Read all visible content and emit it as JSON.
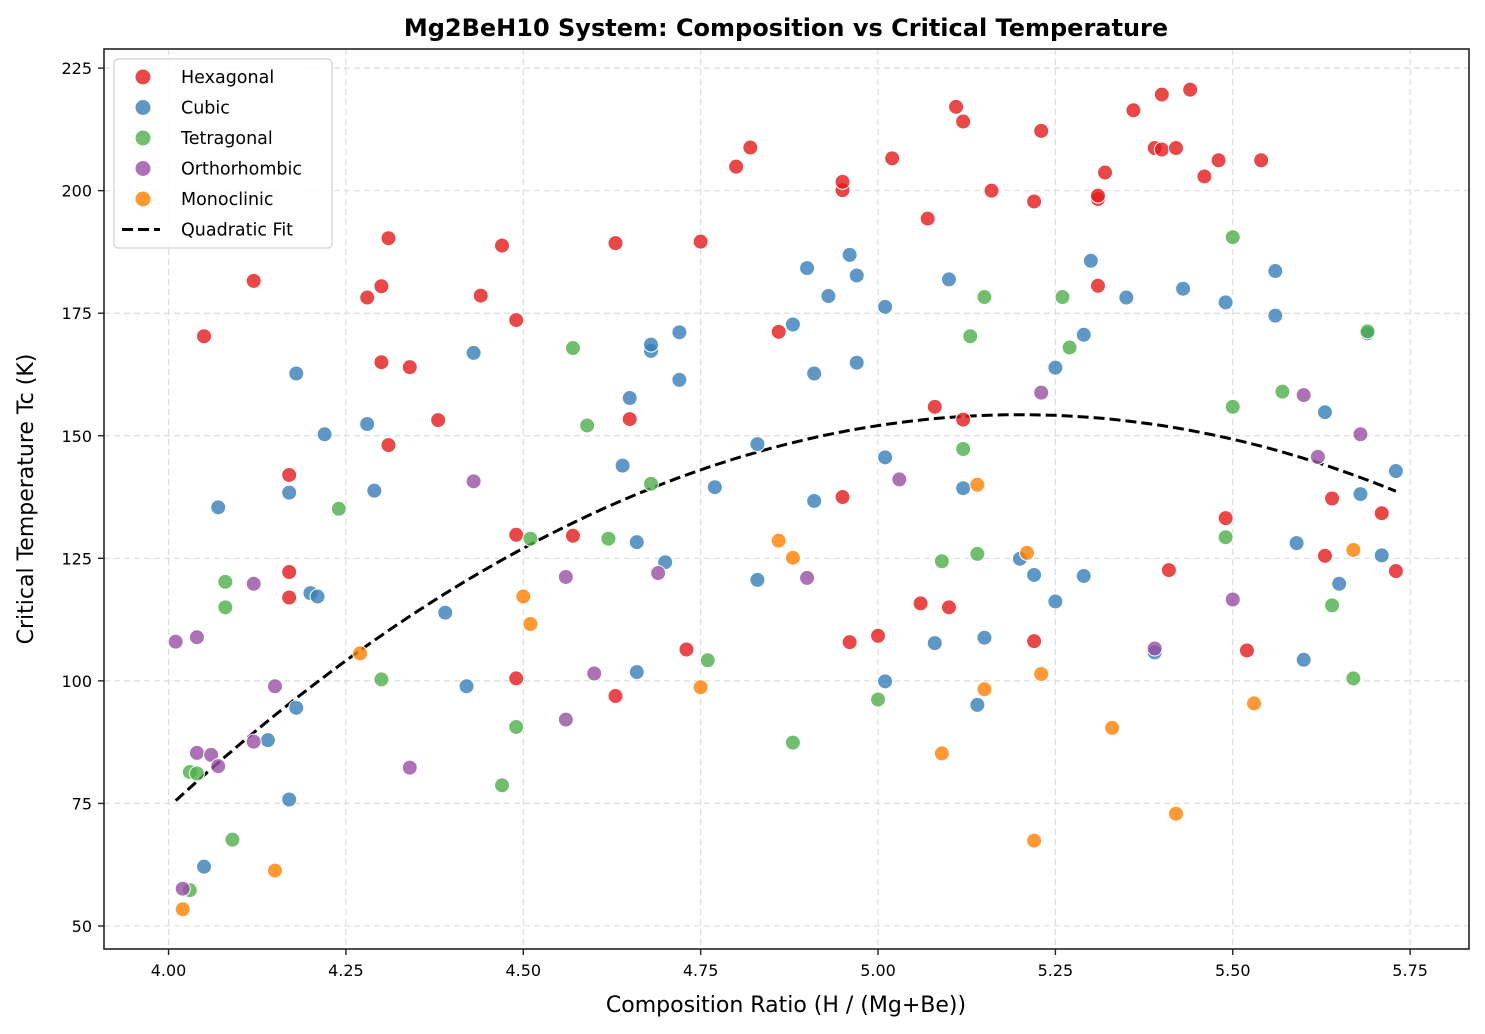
{
  "chart_data": {
    "type": "scatter",
    "title": "Mg2BeH10 System: Composition vs Critical Temperature",
    "xlabel": "Composition Ratio (H / (Mg+Be))",
    "ylabel": "Critical Temperature Tc (K)",
    "xlim": [
      3.909,
      5.833
    ],
    "ylim": [
      45.3,
      228.9
    ],
    "xticks": [
      4.0,
      4.25,
      4.5,
      4.75,
      5.0,
      5.25,
      5.5,
      5.75
    ],
    "xtick_labels": [
      "4.00",
      "4.25",
      "4.50",
      "4.75",
      "5.00",
      "5.25",
      "5.50",
      "5.75"
    ],
    "yticks": [
      50,
      75,
      100,
      125,
      150,
      175,
      200,
      225
    ],
    "ytick_labels": [
      "50",
      "75",
      "100",
      "125",
      "150",
      "175",
      "200",
      "225"
    ],
    "grid": true,
    "legend_position": "top-left",
    "series": [
      {
        "name": "Hexagonal",
        "color": "#e41a1c",
        "points": [
          [
            4.05,
            170.3
          ],
          [
            4.12,
            181.6
          ],
          [
            4.17,
            142
          ],
          [
            4.17,
            122.2
          ],
          [
            4.17,
            117
          ],
          [
            4.28,
            178.2
          ],
          [
            4.3,
            180.5
          ],
          [
            4.3,
            165
          ],
          [
            4.31,
            190.3
          ],
          [
            4.31,
            148.1
          ],
          [
            4.34,
            164
          ],
          [
            4.38,
            153.2
          ],
          [
            4.44,
            178.6
          ],
          [
            4.47,
            188.8
          ],
          [
            4.49,
            173.6
          ],
          [
            4.49,
            129.8
          ],
          [
            4.49,
            100.5
          ],
          [
            4.57,
            129.6
          ],
          [
            4.63,
            189.3
          ],
          [
            4.63,
            96.9
          ],
          [
            4.65,
            153.4
          ],
          [
            4.73,
            106.4
          ],
          [
            4.75,
            189.6
          ],
          [
            4.8,
            204.9
          ],
          [
            4.82,
            208.8
          ],
          [
            4.86,
            171.2
          ],
          [
            4.95,
            200.1
          ],
          [
            4.95,
            201.8
          ],
          [
            4.95,
            137.5
          ],
          [
            4.96,
            107.9
          ],
          [
            5.0,
            109.2
          ],
          [
            5.02,
            206.6
          ],
          [
            5.06,
            115.8
          ],
          [
            5.07,
            194.3
          ],
          [
            5.08,
            155.9
          ],
          [
            5.1,
            115
          ],
          [
            5.11,
            217.1
          ],
          [
            5.12,
            214.1
          ],
          [
            5.12,
            153.3
          ],
          [
            5.16,
            200
          ],
          [
            5.22,
            197.8
          ],
          [
            5.22,
            108.1
          ],
          [
            5.23,
            212.2
          ],
          [
            5.31,
            180.6
          ],
          [
            5.31,
            198.3
          ],
          [
            5.31,
            199
          ],
          [
            5.32,
            203.7
          ],
          [
            5.36,
            216.4
          ],
          [
            5.39,
            208.7
          ],
          [
            5.4,
            219.6
          ],
          [
            5.4,
            208.4
          ],
          [
            5.42,
            208.7
          ],
          [
            5.41,
            122.6
          ],
          [
            5.44,
            220.6
          ],
          [
            5.46,
            202.9
          ],
          [
            5.48,
            206.2
          ],
          [
            5.49,
            133.2
          ],
          [
            5.52,
            106.2
          ],
          [
            5.54,
            206.2
          ],
          [
            5.63,
            125.5
          ],
          [
            5.64,
            137.2
          ],
          [
            5.71,
            134.2
          ],
          [
            5.73,
            122.4
          ]
        ]
      },
      {
        "name": "Cubic",
        "color": "#377eb8",
        "points": [
          [
            4.05,
            62.1
          ],
          [
            4.07,
            135.4
          ],
          [
            4.14,
            87.9
          ],
          [
            4.17,
            138.4
          ],
          [
            4.17,
            75.8
          ],
          [
            4.18,
            162.7
          ],
          [
            4.18,
            94.5
          ],
          [
            4.2,
            117.9
          ],
          [
            4.21,
            117.2
          ],
          [
            4.22,
            150.3
          ],
          [
            4.28,
            152.4
          ],
          [
            4.29,
            138.8
          ],
          [
            4.39,
            113.9
          ],
          [
            4.42,
            98.9
          ],
          [
            4.43,
            166.9
          ],
          [
            4.64,
            143.9
          ],
          [
            4.65,
            157.7
          ],
          [
            4.66,
            128.3
          ],
          [
            4.66,
            101.8
          ],
          [
            4.68,
            167.3
          ],
          [
            4.68,
            168.6
          ],
          [
            4.7,
            124.2
          ],
          [
            4.72,
            171.1
          ],
          [
            4.72,
            161.4
          ],
          [
            4.77,
            139.5
          ],
          [
            4.83,
            148.3
          ],
          [
            4.83,
            120.6
          ],
          [
            4.88,
            172.7
          ],
          [
            4.9,
            184.2
          ],
          [
            4.91,
            136.7
          ],
          [
            4.91,
            162.7
          ],
          [
            4.93,
            178.5
          ],
          [
            4.96,
            186.9
          ],
          [
            4.97,
            182.7
          ],
          [
            4.97,
            164.9
          ],
          [
            5.01,
            176.3
          ],
          [
            5.01,
            145.6
          ],
          [
            5.01,
            99.9
          ],
          [
            5.08,
            107.7
          ],
          [
            5.1,
            181.9
          ],
          [
            5.12,
            139.3
          ],
          [
            5.14,
            95.1
          ],
          [
            5.15,
            108.8
          ],
          [
            5.2,
            124.9
          ],
          [
            5.22,
            121.6
          ],
          [
            5.25,
            116.2
          ],
          [
            5.25,
            163.9
          ],
          [
            5.29,
            170.6
          ],
          [
            5.29,
            121.4
          ],
          [
            5.3,
            185.7
          ],
          [
            5.35,
            178.2
          ],
          [
            5.39,
            105.8
          ],
          [
            5.43,
            180
          ],
          [
            5.49,
            177.2
          ],
          [
            5.56,
            183.6
          ],
          [
            5.56,
            174.5
          ],
          [
            5.59,
            128.1
          ],
          [
            5.6,
            104.3
          ],
          [
            5.63,
            154.8
          ],
          [
            5.65,
            119.8
          ],
          [
            5.68,
            138.1
          ],
          [
            5.69,
            170.9
          ],
          [
            5.71,
            125.6
          ],
          [
            5.73,
            142.8
          ]
        ]
      },
      {
        "name": "Tetragonal",
        "color": "#4daf4a",
        "points": [
          [
            4.03,
            81.4
          ],
          [
            4.03,
            57.3
          ],
          [
            4.04,
            81.1
          ],
          [
            4.08,
            120.2
          ],
          [
            4.08,
            115
          ],
          [
            4.09,
            67.6
          ],
          [
            4.24,
            135.1
          ],
          [
            4.3,
            100.3
          ],
          [
            4.47,
            78.7
          ],
          [
            4.49,
            90.6
          ],
          [
            4.51,
            129
          ],
          [
            4.57,
            167.9
          ],
          [
            4.59,
            152.1
          ],
          [
            4.62,
            129
          ],
          [
            4.68,
            140.2
          ],
          [
            4.76,
            104.2
          ],
          [
            4.88,
            87.4
          ],
          [
            5.0,
            96.2
          ],
          [
            5.09,
            124.4
          ],
          [
            5.12,
            147.3
          ],
          [
            5.13,
            170.3
          ],
          [
            5.14,
            125.9
          ],
          [
            5.15,
            178.3
          ],
          [
            5.26,
            178.3
          ],
          [
            5.27,
            168
          ],
          [
            5.49,
            129.3
          ],
          [
            5.5,
            155.9
          ],
          [
            5.5,
            190.5
          ],
          [
            5.57,
            159
          ],
          [
            5.64,
            115.4
          ],
          [
            5.67,
            100.5
          ],
          [
            5.69,
            171.3
          ]
        ]
      },
      {
        "name": "Orthorhombic",
        "color": "#984ea3",
        "points": [
          [
            4.01,
            108
          ],
          [
            4.02,
            57.6
          ],
          [
            4.04,
            108.9
          ],
          [
            4.04,
            85.3
          ],
          [
            4.06,
            84.9
          ],
          [
            4.07,
            82.6
          ],
          [
            4.12,
            119.8
          ],
          [
            4.12,
            87.6
          ],
          [
            4.15,
            98.9
          ],
          [
            4.34,
            82.3
          ],
          [
            4.43,
            140.7
          ],
          [
            4.56,
            121.2
          ],
          [
            4.56,
            92.1
          ],
          [
            4.6,
            101.5
          ],
          [
            4.69,
            122
          ],
          [
            4.9,
            121
          ],
          [
            5.03,
            141.1
          ],
          [
            5.23,
            158.8
          ],
          [
            5.39,
            106.6
          ],
          [
            5.5,
            116.6
          ],
          [
            5.6,
            158.3
          ],
          [
            5.62,
            145.7
          ],
          [
            5.68,
            150.3
          ]
        ]
      },
      {
        "name": "Monoclinic",
        "color": "#ff7f00",
        "points": [
          [
            4.02,
            53.4
          ],
          [
            4.15,
            61.3
          ],
          [
            4.27,
            105.6
          ],
          [
            4.5,
            117.2
          ],
          [
            4.51,
            111.6
          ],
          [
            4.75,
            98.7
          ],
          [
            4.86,
            128.6
          ],
          [
            4.88,
            125.1
          ],
          [
            5.09,
            85.2
          ],
          [
            5.14,
            140
          ],
          [
            5.15,
            98.3
          ],
          [
            5.21,
            126.1
          ],
          [
            5.22,
            67.4
          ],
          [
            5.23,
            101.4
          ],
          [
            5.33,
            90.4
          ],
          [
            5.42,
            72.9
          ],
          [
            5.53,
            95.4
          ],
          [
            5.67,
            126.7
          ]
        ]
      }
    ],
    "fit": {
      "name": "Quadratic Fit",
      "x_range": [
        4.01,
        5.73
      ],
      "coefficients": {
        "a": -55.6,
        "b": 578.2,
        "c": -1348.7
      },
      "peak": {
        "x": 5.2,
        "y": 154.3
      }
    }
  }
}
